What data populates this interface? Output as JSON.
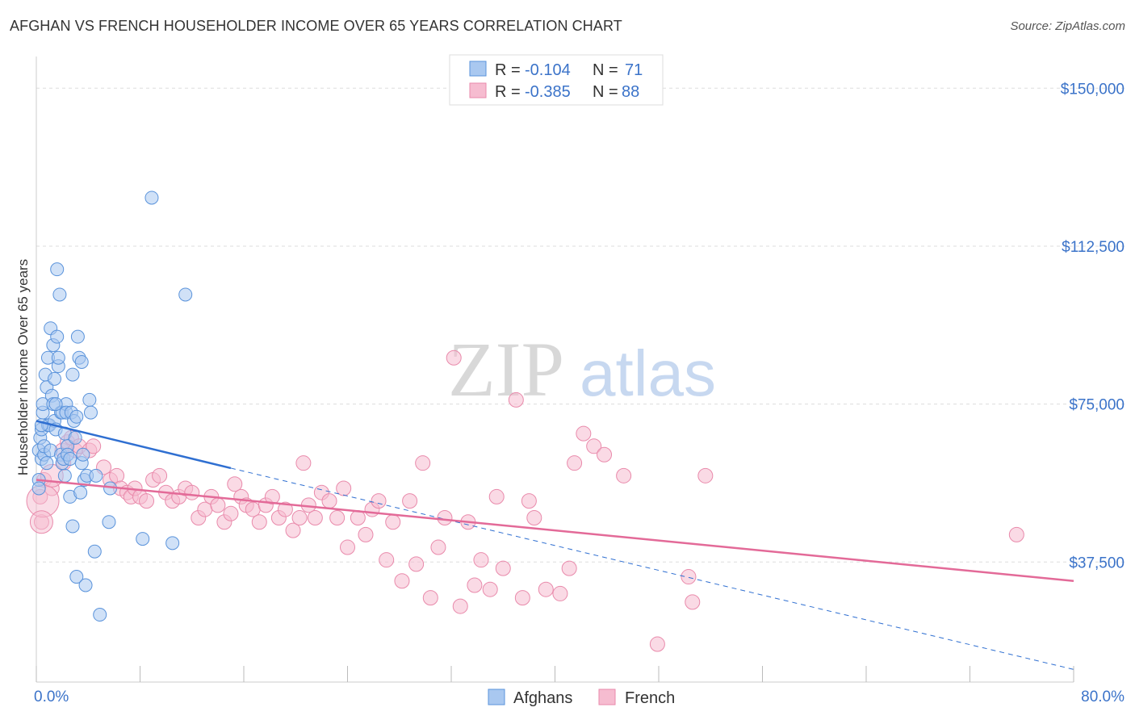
{
  "title": "AFGHAN VS FRENCH HOUSEHOLDER INCOME OVER 65 YEARS CORRELATION CHART",
  "source": "Source: ZipAtlas.com",
  "watermark": {
    "zip": "ZIP",
    "atlas": "atlas"
  },
  "colors": {
    "afghans_fill": "#a9c8f0",
    "afghans_stroke": "#5a93db",
    "afghans_line": "#2f6fd1",
    "french_fill": "#f6bcd0",
    "french_stroke": "#e98aab",
    "french_line": "#e36a98",
    "tick_label": "#3b73c9",
    "grid": "#dddddd"
  },
  "legend": {
    "rows": [
      {
        "r_label": "R =",
        "r_value": "-0.104",
        "n_label": "N =",
        "n_value": "71"
      },
      {
        "r_label": "R =",
        "r_value": "-0.385",
        "n_label": "N =",
        "n_value": "88"
      }
    ]
  },
  "chart_data": {
    "type": "scatter",
    "title": "AFGHAN VS FRENCH HOUSEHOLDER INCOME OVER 65 YEARS CORRELATION CHART",
    "xlabel": "",
    "ylabel": "Householder Income Over 65 years",
    "xlim": [
      0,
      80
    ],
    "ylim": [
      9000,
      156000
    ],
    "x_tick_labels": [
      "0.0%",
      "80.0%"
    ],
    "y_ticks": [
      37500,
      75000,
      112500,
      150000
    ],
    "y_tick_labels": [
      "$37,500",
      "$75,000",
      "$112,500",
      "$150,000"
    ],
    "grid": true,
    "legend_position": "top-center",
    "series": [
      {
        "name": "Afghans",
        "trend": {
          "x0": 0,
          "y0": 71000,
          "x1": 15,
          "y1": 59800,
          "dashed_to_x": 80,
          "dashed_to_y": 12000
        },
        "points": [
          [
            0.2,
            64000
          ],
          [
            0.2,
            57000
          ],
          [
            0.2,
            55000
          ],
          [
            0.3,
            67000
          ],
          [
            0.4,
            69000
          ],
          [
            0.4,
            62000
          ],
          [
            0.5,
            73000
          ],
          [
            0.5,
            75000
          ],
          [
            0.6,
            63000
          ],
          [
            0.6,
            65000
          ],
          [
            0.7,
            82000
          ],
          [
            0.8,
            79000
          ],
          [
            0.9,
            86000
          ],
          [
            0.9,
            70000
          ],
          [
            1.0,
            70000
          ],
          [
            1.1,
            64000
          ],
          [
            1.1,
            93000
          ],
          [
            1.2,
            77000
          ],
          [
            1.3,
            89000
          ],
          [
            1.3,
            75000
          ],
          [
            1.4,
            81000
          ],
          [
            1.4,
            71000
          ],
          [
            1.5,
            69000
          ],
          [
            1.6,
            107000
          ],
          [
            1.6,
            91000
          ],
          [
            1.7,
            84000
          ],
          [
            1.7,
            86000
          ],
          [
            1.8,
            101000
          ],
          [
            1.9,
            63000
          ],
          [
            1.9,
            73000
          ],
          [
            2.0,
            73000
          ],
          [
            2.0,
            61000
          ],
          [
            2.1,
            62000
          ],
          [
            2.2,
            68000
          ],
          [
            2.2,
            58000
          ],
          [
            2.3,
            75000
          ],
          [
            2.3,
            73000
          ],
          [
            2.4,
            65000
          ],
          [
            2.4,
            63000
          ],
          [
            2.6,
            53000
          ],
          [
            2.6,
            62000
          ],
          [
            2.7,
            73000
          ],
          [
            2.8,
            46000
          ],
          [
            2.8,
            82000
          ],
          [
            2.9,
            71000
          ],
          [
            3.0,
            67000
          ],
          [
            3.1,
            72000
          ],
          [
            3.1,
            34000
          ],
          [
            3.2,
            91000
          ],
          [
            3.3,
            86000
          ],
          [
            3.4,
            54000
          ],
          [
            3.5,
            61000
          ],
          [
            3.5,
            85000
          ],
          [
            3.6,
            63000
          ],
          [
            3.7,
            57000
          ],
          [
            3.8,
            32000
          ],
          [
            3.9,
            58000
          ],
          [
            4.1,
            76000
          ],
          [
            4.2,
            73000
          ],
          [
            4.5,
            40000
          ],
          [
            4.6,
            58000
          ],
          [
            4.9,
            25000
          ],
          [
            5.6,
            47000
          ],
          [
            5.7,
            55000
          ],
          [
            8.2,
            43000
          ],
          [
            8.9,
            124000
          ],
          [
            10.5,
            42000
          ],
          [
            11.5,
            101000
          ],
          [
            0.4,
            70000
          ],
          [
            0.8,
            61000
          ],
          [
            1.5,
            75000
          ]
        ]
      },
      {
        "name": "French",
        "trend": {
          "x0": 0,
          "y0": 57000,
          "x1": 80,
          "y1": 33000
        },
        "points": [
          [
            0.3,
            53000
          ],
          [
            0.4,
            47000
          ],
          [
            0.6,
            57000
          ],
          [
            1.2,
            55000
          ],
          [
            2.0,
            64000
          ],
          [
            2.1,
            61000
          ],
          [
            2.4,
            66000
          ],
          [
            2.7,
            67000
          ],
          [
            3.0,
            64000
          ],
          [
            3.3,
            65000
          ],
          [
            4.1,
            64000
          ],
          [
            4.4,
            65000
          ],
          [
            5.2,
            60000
          ],
          [
            5.7,
            57000
          ],
          [
            6.2,
            58000
          ],
          [
            6.5,
            55000
          ],
          [
            7.0,
            54000
          ],
          [
            7.3,
            53000
          ],
          [
            7.6,
            55000
          ],
          [
            8.0,
            53000
          ],
          [
            8.5,
            52000
          ],
          [
            9.0,
            57000
          ],
          [
            9.5,
            58000
          ],
          [
            10.0,
            54000
          ],
          [
            10.5,
            52000
          ],
          [
            11.0,
            53000
          ],
          [
            11.5,
            55000
          ],
          [
            12.0,
            54000
          ],
          [
            12.5,
            48000
          ],
          [
            13.0,
            50000
          ],
          [
            13.5,
            53000
          ],
          [
            14.0,
            51000
          ],
          [
            14.5,
            47000
          ],
          [
            15.0,
            49000
          ],
          [
            15.3,
            56000
          ],
          [
            15.8,
            53000
          ],
          [
            16.2,
            51000
          ],
          [
            16.7,
            50000
          ],
          [
            17.2,
            47000
          ],
          [
            17.7,
            51000
          ],
          [
            18.2,
            53000
          ],
          [
            18.7,
            48000
          ],
          [
            19.2,
            50000
          ],
          [
            19.8,
            45000
          ],
          [
            20.3,
            48000
          ],
          [
            20.6,
            61000
          ],
          [
            21.0,
            51000
          ],
          [
            21.5,
            48000
          ],
          [
            22.0,
            54000
          ],
          [
            22.6,
            52000
          ],
          [
            23.2,
            48000
          ],
          [
            23.7,
            55000
          ],
          [
            24.0,
            41000
          ],
          [
            24.8,
            48000
          ],
          [
            25.4,
            44000
          ],
          [
            25.9,
            50000
          ],
          [
            26.4,
            52000
          ],
          [
            27.0,
            38000
          ],
          [
            27.5,
            47000
          ],
          [
            28.2,
            33000
          ],
          [
            28.8,
            52000
          ],
          [
            29.3,
            37000
          ],
          [
            29.8,
            61000
          ],
          [
            30.4,
            29000
          ],
          [
            31.0,
            41000
          ],
          [
            31.5,
            48000
          ],
          [
            32.2,
            86000
          ],
          [
            32.7,
            27000
          ],
          [
            33.3,
            47000
          ],
          [
            33.8,
            32000
          ],
          [
            34.3,
            38000
          ],
          [
            35.0,
            31000
          ],
          [
            35.5,
            53000
          ],
          [
            36.0,
            36000
          ],
          [
            37.0,
            76000
          ],
          [
            37.5,
            29000
          ],
          [
            38.0,
            52000
          ],
          [
            38.4,
            48000
          ],
          [
            39.3,
            31000
          ],
          [
            40.4,
            30000
          ],
          [
            41.1,
            36000
          ],
          [
            41.5,
            61000
          ],
          [
            42.2,
            68000
          ],
          [
            43.0,
            65000
          ],
          [
            43.8,
            63000
          ],
          [
            45.3,
            58000
          ],
          [
            47.9,
            18000
          ],
          [
            50.3,
            34000
          ]
        ]
      }
    ],
    "extra_french_points": [
      [
        50.6,
        28000
      ],
      [
        51.6,
        58000
      ],
      [
        75.6,
        44000
      ]
    ]
  }
}
